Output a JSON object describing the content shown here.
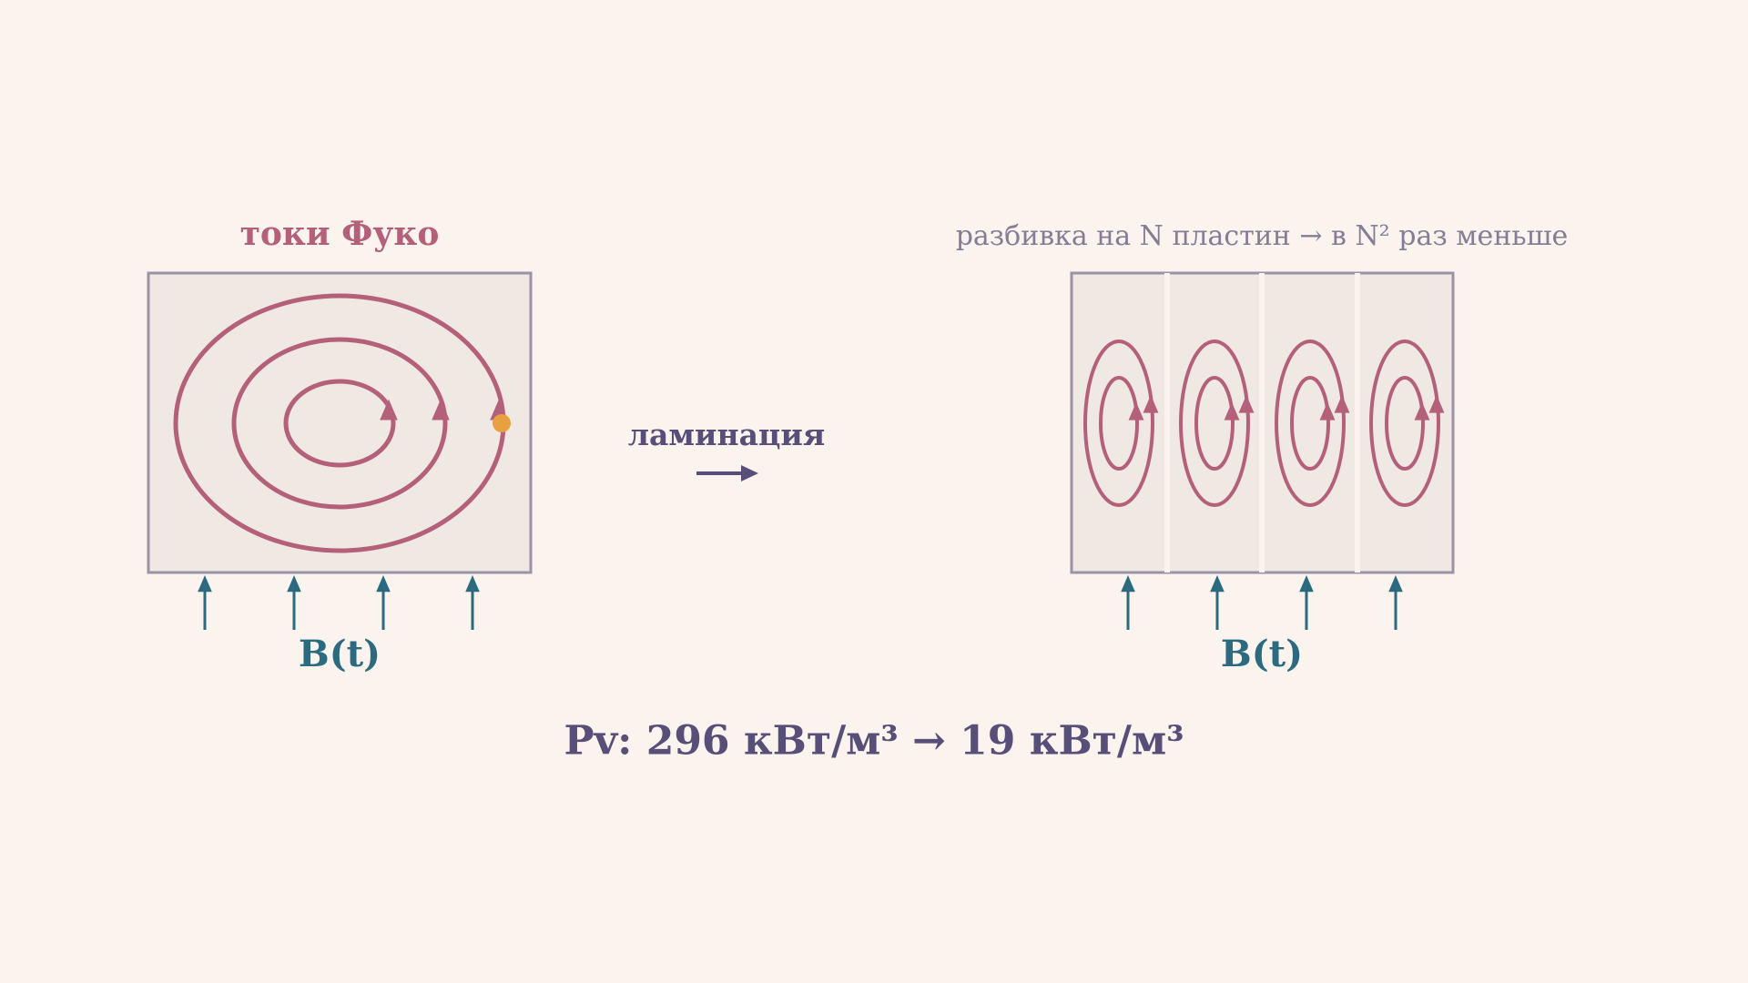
{
  "left": {
    "title": "токи Фуко",
    "field_label": "B(t)"
  },
  "middle": {
    "label": "ламинация"
  },
  "right": {
    "title": "разбивка на N пластин → в N² раз меньше",
    "field_label": "B(t)"
  },
  "result": "Pv: 296 кВт/м³ → 19 кВт/м³"
}
